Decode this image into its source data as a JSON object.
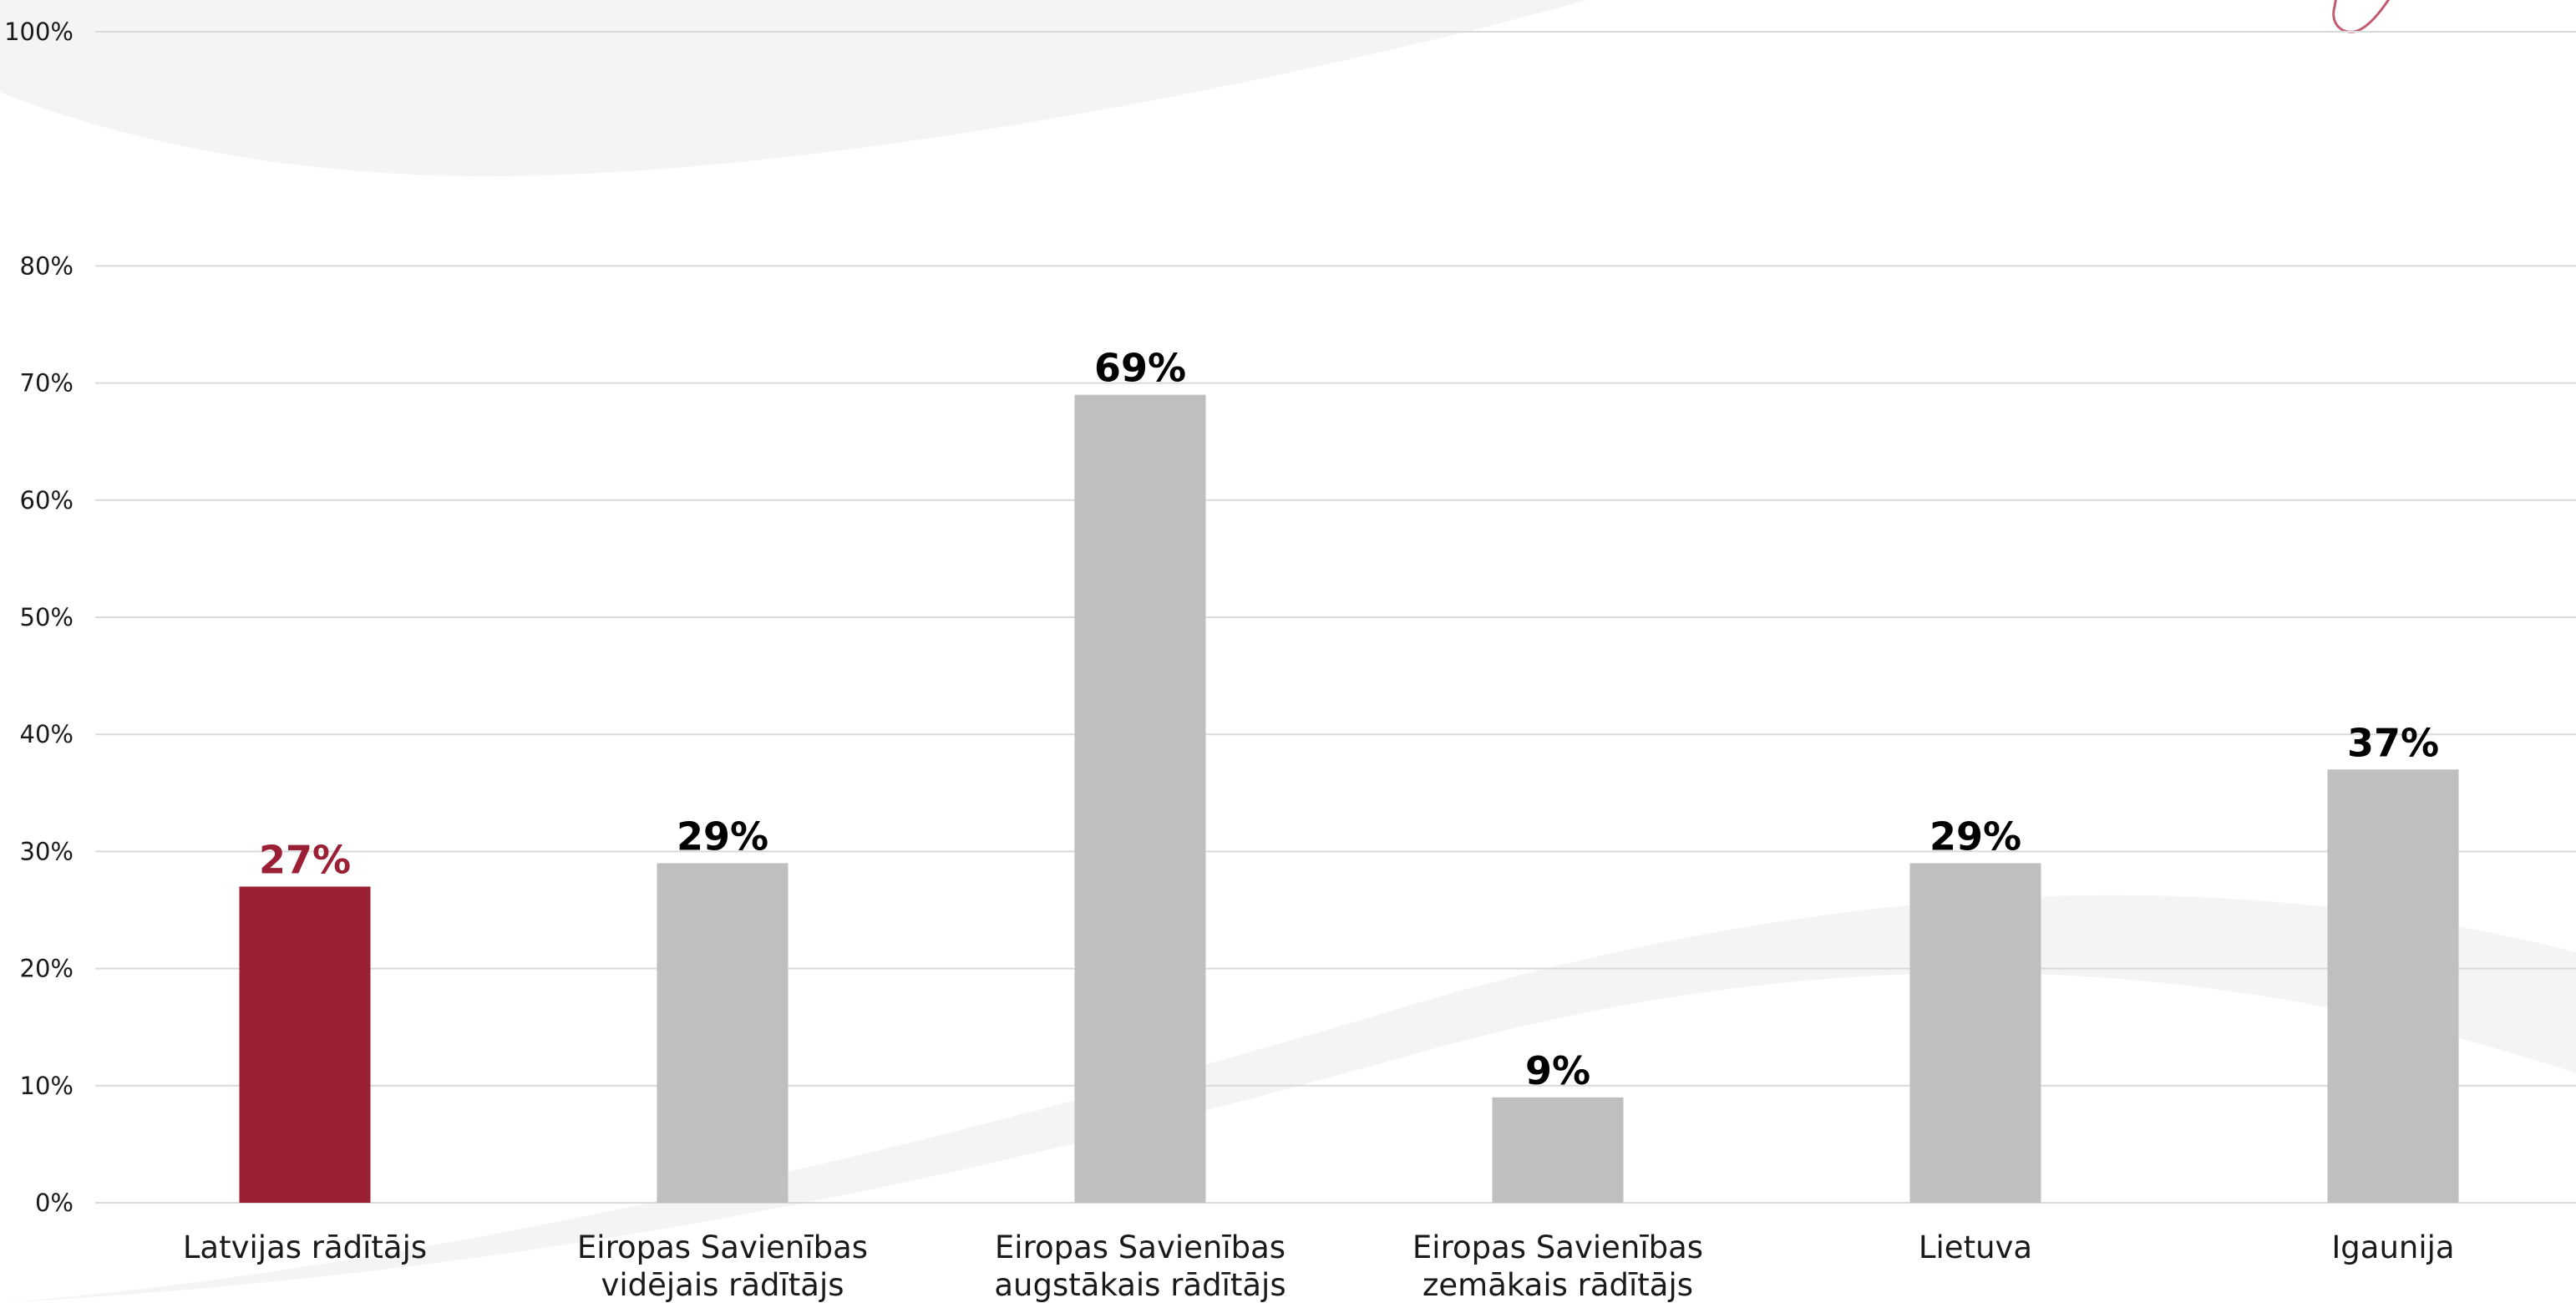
{
  "chart_data": {
    "type": "bar",
    "title": "",
    "xlabel": "",
    "ylabel": "",
    "ylim": [
      0,
      100
    ],
    "yticks": [
      "0%",
      "10%",
      "20%",
      "30%",
      "40%",
      "50%",
      "60%",
      "70%",
      "80%",
      "100%"
    ],
    "grid": true,
    "legend": "none",
    "categories": [
      [
        "Latvijas rādītājs"
      ],
      [
        "Eiropas Savienības",
        "vidējais rādītājs"
      ],
      [
        "Eiropas Savienības",
        "augstākais rādītājs"
      ],
      [
        "Eiropas Savienības",
        "zemākais rādītājs"
      ],
      [
        "Lietuva"
      ],
      [
        "Igaunija"
      ]
    ],
    "values": [
      27,
      29,
      69,
      9,
      29,
      37
    ],
    "data_labels": [
      "27%",
      "29%",
      "69%",
      "9%",
      "29%",
      "37%"
    ],
    "colors": {
      "highlight": "#9b1f35",
      "default": "#bfbfbf",
      "default_label": "#000000",
      "gridline": "#d9d9d9",
      "background_swoosh": "#f3f4f3",
      "logo_stroke": "#c45a6e"
    },
    "highlight_index": 0
  }
}
